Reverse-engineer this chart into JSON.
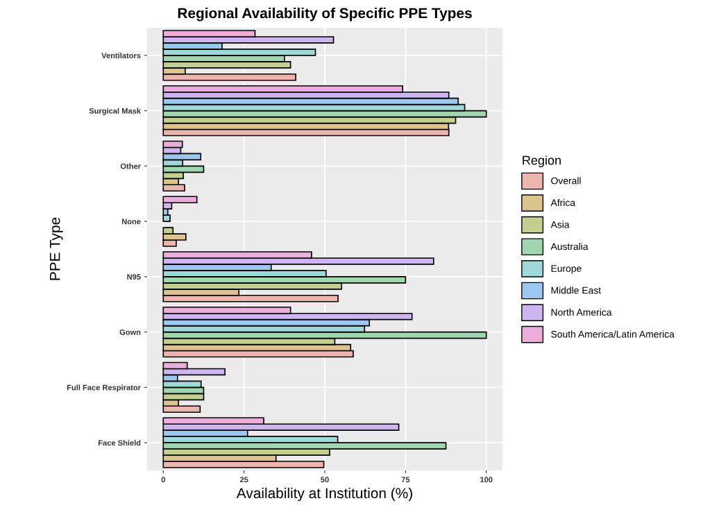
{
  "chart_data": {
    "type": "bar",
    "orientation": "horizontal",
    "title": "Regional Availability of Specific PPE Types",
    "xlabel": "Availability at Institution (%)",
    "ylabel": "PPE Type",
    "legend_title": "Region",
    "legend": "right",
    "grid": true,
    "categories": [
      "Ventilators",
      "Surgical Mask",
      "Other",
      "None",
      "N95",
      "Gown",
      "Full Face Respirator",
      "Face Shield"
    ],
    "xlim": [
      -5,
      105
    ],
    "xticks": [
      0,
      25,
      50,
      75,
      100
    ],
    "series": [
      {
        "name": "Overall",
        "color": "#eeb4ae",
        "values": [
          41.0,
          88.4,
          6.6,
          4.0,
          54.1,
          58.8,
          11.4,
          49.7
        ]
      },
      {
        "name": "Africa",
        "color": "#dcc48e",
        "values": [
          6.8,
          88.3,
          4.7,
          7.0,
          23.4,
          58.0,
          4.7,
          34.9
        ]
      },
      {
        "name": "Asia",
        "color": "#c2cf8e",
        "values": [
          39.4,
          90.5,
          6.2,
          3.0,
          55.2,
          53.1,
          12.5,
          51.5
        ]
      },
      {
        "name": "Australia",
        "color": "#9fd6b0",
        "values": [
          37.5,
          100,
          12.5,
          null,
          75.0,
          100,
          12.5,
          87.5
        ]
      },
      {
        "name": "Europe",
        "color": "#9fd8d8",
        "values": [
          47.1,
          93.3,
          6.0,
          2.1,
          50.4,
          62.3,
          11.7,
          54.0
        ]
      },
      {
        "name": "Middle East",
        "color": "#9cc8ef",
        "values": [
          18.2,
          91.3,
          11.6,
          1.4,
          33.4,
          63.8,
          4.4,
          26.1
        ]
      },
      {
        "name": "North America",
        "color": "#cdb6ef",
        "values": [
          52.7,
          88.4,
          5.4,
          2.6,
          83.7,
          77.0,
          19.1,
          72.9
        ]
      },
      {
        "name": "South America/Latin America",
        "color": "#ebaedb",
        "values": [
          28.4,
          74.1,
          5.9,
          10.4,
          45.9,
          39.4,
          7.4,
          31.1
        ]
      }
    ]
  }
}
